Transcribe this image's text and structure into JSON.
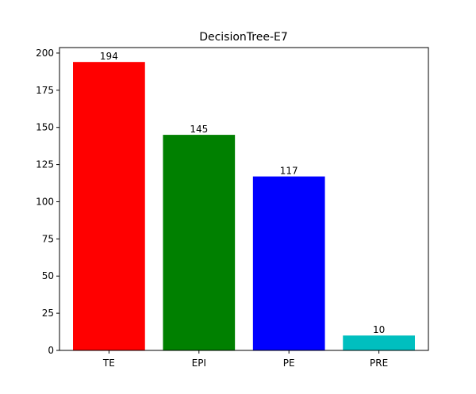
{
  "chart_data": {
    "type": "bar",
    "title": "DecisionTree-E7",
    "xlabel": "",
    "ylabel": "",
    "categories": [
      "TE",
      "EPI",
      "PE",
      "PRE"
    ],
    "values": [
      194,
      145,
      117,
      10
    ],
    "colors": [
      "#ff0000",
      "#008000",
      "#0000ff",
      "#00bfbf"
    ],
    "yticks": [
      0,
      25,
      50,
      75,
      100,
      125,
      150,
      175,
      200
    ],
    "ylim": [
      0,
      203.7
    ],
    "grid": false,
    "legend": "none"
  }
}
